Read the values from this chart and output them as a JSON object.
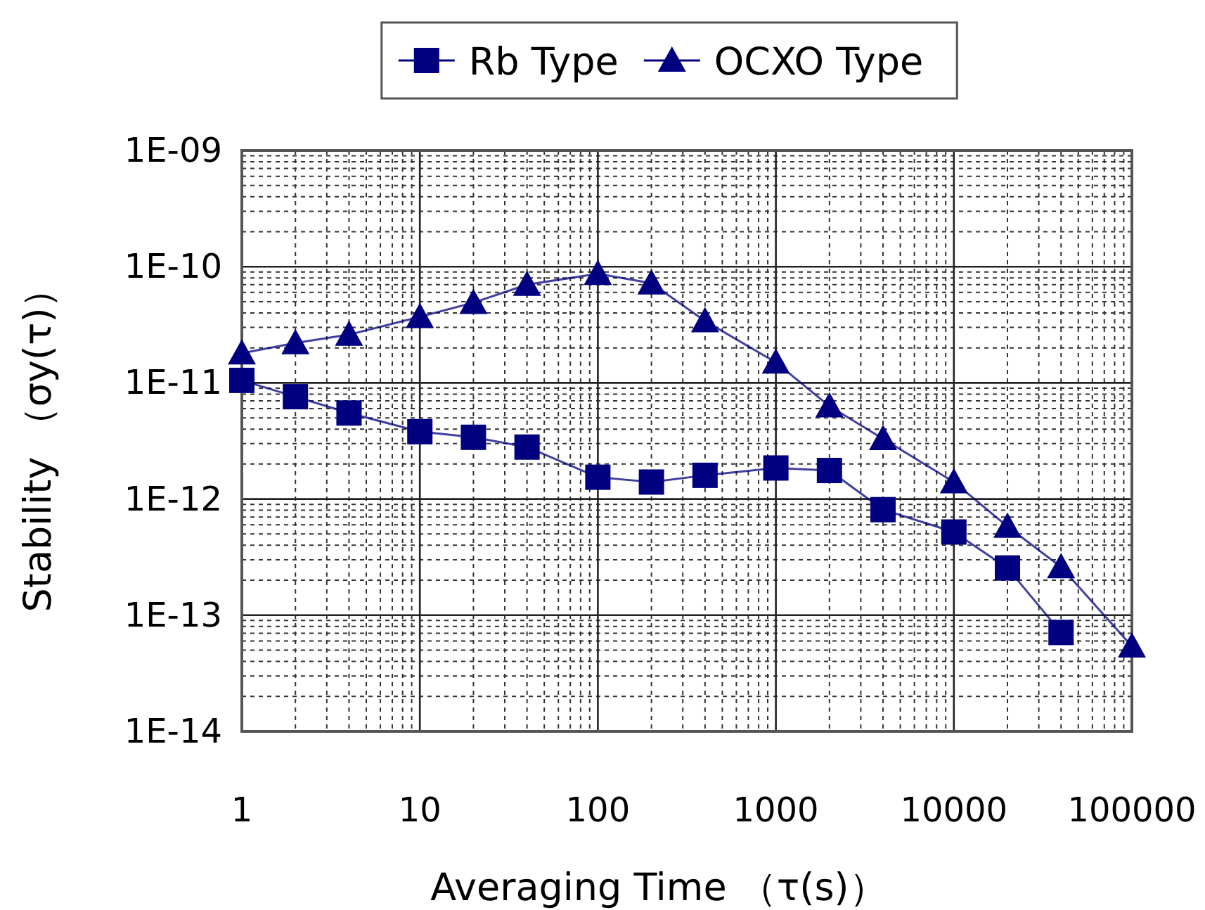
{
  "chart_data": {
    "type": "line",
    "xlabel": "Averaging Time （τ(s)）",
    "ylabel": "Stability （σy(τ)）",
    "log": "xy",
    "grid": true,
    "legend": "top",
    "line_style": "solid",
    "xlim": [
      1,
      100000
    ],
    "ylim": [
      1e-14,
      1e-09
    ],
    "xticks": [
      1,
      10,
      100,
      1000,
      10000,
      100000
    ],
    "yticks": [
      {
        "value": 1e-14,
        "label": "1E-14"
      },
      {
        "value": 1e-13,
        "label": "1E-13"
      },
      {
        "value": 1e-12,
        "label": "1E-12"
      },
      {
        "value": 1e-11,
        "label": "1E-11"
      },
      {
        "value": 1e-10,
        "label": "1E-10"
      },
      {
        "value": 1e-09,
        "label": "1E-09"
      }
    ],
    "series": [
      {
        "name": "Rb Type",
        "color": "#000080",
        "marker": "square",
        "x": [
          1,
          2,
          4,
          10,
          20,
          40,
          100,
          200,
          400,
          1000,
          2000,
          4000,
          10000,
          20000,
          40000
        ],
        "values": [
          1.05e-11,
          7.6e-12,
          5.5e-12,
          3.8e-12,
          3.4e-12,
          2.8e-12,
          1.54e-12,
          1.4e-12,
          1.6e-12,
          1.85e-12,
          1.76e-12,
          8.1e-13,
          5.2e-13,
          2.55e-13,
          7.1e-14
        ]
      },
      {
        "name": "OCXO Type",
        "color": "#000080",
        "marker": "triangle",
        "x": [
          1,
          2,
          4,
          10,
          20,
          40,
          100,
          200,
          400,
          1000,
          2000,
          4000,
          10000,
          20000,
          40000,
          100000
        ],
        "values": [
          1.8e-11,
          2.2e-11,
          2.6e-11,
          3.7e-11,
          4.9e-11,
          7e-11,
          8.7e-11,
          7.2e-11,
          3.4e-11,
          1.5e-11,
          6.3e-12,
          3.3e-12,
          1.4e-12,
          5.8e-13,
          2.6e-13,
          5.4e-14
        ]
      }
    ]
  }
}
